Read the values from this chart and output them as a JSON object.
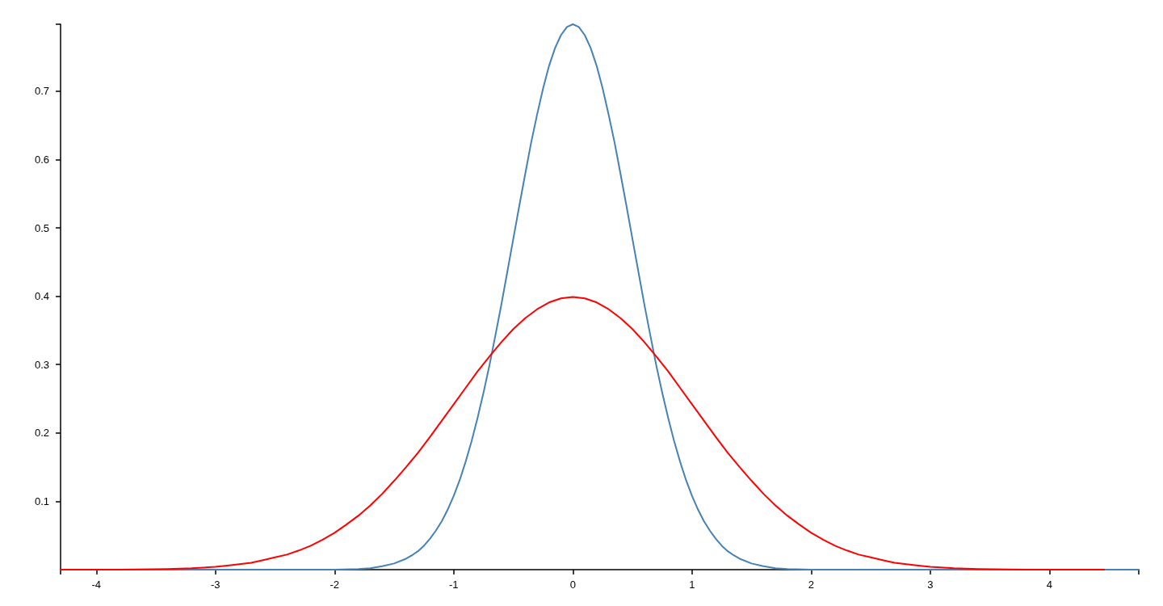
{
  "chart_data": {
    "type": "line",
    "xlim": [
      -4.3,
      4.75
    ],
    "xticks": [
      {
        "value": -4.3,
        "label": null
      },
      -4,
      -3,
      -2,
      -1,
      0,
      1,
      2,
      3,
      4,
      {
        "value": 4.75,
        "label": null
      }
    ],
    "ylim": [
      0,
      0.798
    ],
    "yticks": [
      0.1,
      0.2,
      0.3,
      0.4,
      0.5,
      0.6,
      0.7,
      {
        "value": 0.798,
        "label": null
      }
    ],
    "grid": false,
    "marker": "none",
    "line_style": "solid",
    "series": [
      {
        "color": "#4682b4",
        "x": [
          -4.3,
          -3,
          -2.4,
          -2,
          -1.8,
          -1.7,
          -1.6,
          -1.5,
          -1.4,
          -1.35,
          -1.3,
          -1.25,
          -1.2,
          -1.15,
          -1.1,
          -1.05,
          -1,
          -0.95,
          -0.9,
          -0.85,
          -0.8,
          -0.75,
          -0.7,
          -0.65,
          -0.6,
          -0.55,
          -0.5,
          -0.45,
          -0.4,
          -0.35,
          -0.3,
          -0.25,
          -0.2,
          -0.15,
          -0.1,
          -0.05,
          0,
          0.05,
          0.1,
          0.15,
          0.2,
          0.25,
          0.3,
          0.35,
          0.4,
          0.45,
          0.5,
          0.55,
          0.6,
          0.65,
          0.7,
          0.75,
          0.8,
          0.85,
          0.9,
          0.95,
          1,
          1.05,
          1.1,
          1.15,
          1.2,
          1.25,
          1.3,
          1.35,
          1.4,
          1.5,
          1.6,
          1.7,
          1.8,
          2,
          2.4,
          3,
          4.75
        ],
        "values": [
          0,
          0,
          0,
          0,
          0.001,
          0.002,
          0.005,
          0.009,
          0.016,
          0.021,
          0.027,
          0.035,
          0.045,
          0.057,
          0.071,
          0.088,
          0.108,
          0.131,
          0.158,
          0.188,
          0.222,
          0.259,
          0.299,
          0.343,
          0.388,
          0.436,
          0.484,
          0.532,
          0.579,
          0.625,
          0.666,
          0.704,
          0.737,
          0.763,
          0.782,
          0.794,
          0.798,
          0.794,
          0.782,
          0.763,
          0.737,
          0.704,
          0.666,
          0.625,
          0.579,
          0.532,
          0.484,
          0.436,
          0.388,
          0.343,
          0.299,
          0.259,
          0.222,
          0.188,
          0.158,
          0.131,
          0.108,
          0.088,
          0.071,
          0.057,
          0.045,
          0.035,
          0.027,
          0.021,
          0.016,
          0.009,
          0.005,
          0.002,
          0.001,
          0,
          0,
          0,
          0
        ]
      },
      {
        "color": "#ff0000",
        "x": [
          -4.3,
          -3.8,
          -3.4,
          -3.2,
          -3,
          -2.9,
          -2.8,
          -2.7,
          -2.6,
          -2.5,
          -2.4,
          -2.3,
          -2.2,
          -2.1,
          -2,
          -1.9,
          -1.8,
          -1.7,
          -1.6,
          -1.5,
          -1.4,
          -1.3,
          -1.2,
          -1.1,
          -1,
          -0.9,
          -0.8,
          -0.7,
          -0.6,
          -0.5,
          -0.4,
          -0.3,
          -0.2,
          -0.1,
          0,
          0.1,
          0.2,
          0.3,
          0.4,
          0.5,
          0.6,
          0.7,
          0.8,
          0.9,
          1,
          1.1,
          1.2,
          1.3,
          1.4,
          1.5,
          1.6,
          1.7,
          1.8,
          1.9,
          2,
          2.1,
          2.2,
          2.3,
          2.4,
          2.5,
          2.6,
          2.7,
          2.8,
          2.9,
          3,
          3.2,
          3.4,
          3.8,
          4.46
        ],
        "values": [
          0,
          0,
          0.001,
          0.002,
          0.004,
          0.006,
          0.008,
          0.01,
          0.014,
          0.018,
          0.022,
          0.028,
          0.035,
          0.044,
          0.054,
          0.066,
          0.079,
          0.094,
          0.111,
          0.13,
          0.15,
          0.171,
          0.194,
          0.218,
          0.242,
          0.266,
          0.29,
          0.312,
          0.333,
          0.352,
          0.368,
          0.381,
          0.391,
          0.397,
          0.399,
          0.397,
          0.391,
          0.381,
          0.368,
          0.352,
          0.333,
          0.312,
          0.29,
          0.266,
          0.242,
          0.218,
          0.194,
          0.171,
          0.15,
          0.13,
          0.111,
          0.094,
          0.079,
          0.066,
          0.054,
          0.044,
          0.035,
          0.028,
          0.022,
          0.018,
          0.014,
          0.01,
          0.008,
          0.006,
          0.004,
          0.002,
          0.001,
          0,
          0
        ]
      }
    ]
  }
}
